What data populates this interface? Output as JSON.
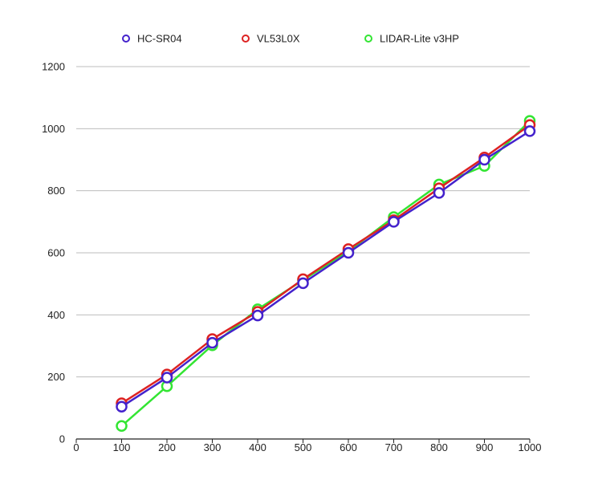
{
  "chart_data": {
    "type": "line",
    "title": "",
    "xlabel": "",
    "ylabel": "",
    "x": [
      100,
      200,
      300,
      400,
      500,
      600,
      700,
      800,
      900,
      1000
    ],
    "xlim": [
      0,
      1000
    ],
    "ylim": [
      0,
      1200
    ],
    "x_ticks": [
      0,
      100,
      200,
      300,
      400,
      500,
      600,
      700,
      800,
      900,
      1000
    ],
    "y_ticks": [
      0,
      200,
      400,
      600,
      800,
      1000,
      1200
    ],
    "grid": "horizontal",
    "legend_position": "top",
    "series": [
      {
        "name": "LIDAR-Lite v3HP",
        "color": "#33e533",
        "values": [
          42,
          170,
          302,
          418,
          512,
          605,
          715,
          820,
          880,
          1025
        ]
      },
      {
        "name": "VL53L0X",
        "color": "#dd2222",
        "values": [
          115,
          208,
          322,
          410,
          515,
          612,
          705,
          808,
          907,
          1012
        ]
      },
      {
        "name": "HC-SR04",
        "color": "#4422cc",
        "values": [
          104,
          198,
          310,
          398,
          502,
          600,
          700,
          793,
          900,
          992
        ]
      }
    ],
    "legend_order": [
      "HC-SR04",
      "VL53L0X",
      "LIDAR-Lite v3HP"
    ]
  }
}
